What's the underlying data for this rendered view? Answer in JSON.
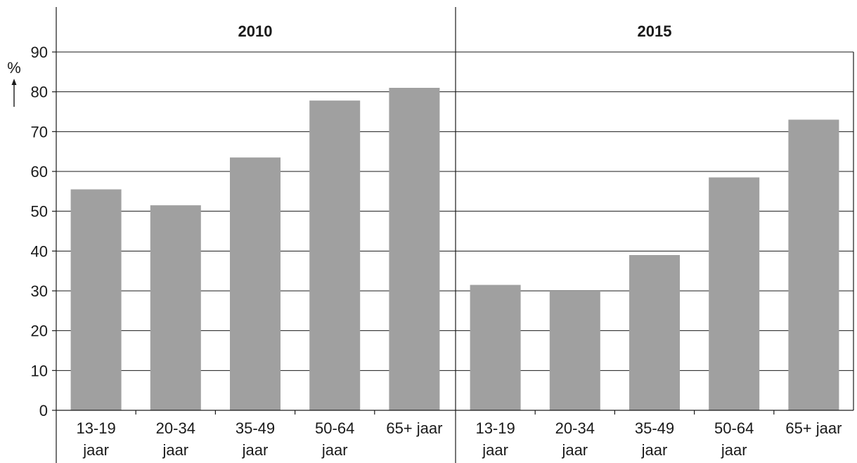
{
  "chart_data": {
    "type": "bar",
    "ylabel": "%",
    "ylim": [
      0,
      90
    ],
    "yticks": [
      0,
      10,
      20,
      30,
      40,
      50,
      60,
      70,
      80,
      90
    ],
    "grid": true,
    "colors": {
      "bar": "#a0a0a0",
      "axis": "#1a1a1a"
    },
    "categories": [
      {
        "line1": "13-19",
        "line2": "jaar"
      },
      {
        "line1": "20-34",
        "line2": "jaar"
      },
      {
        "line1": "35-49",
        "line2": "jaar"
      },
      {
        "line1": "50-64",
        "line2": "jaar"
      },
      {
        "line1": "65+ jaar",
        "line2": ""
      }
    ],
    "panels": [
      {
        "title": "2010",
        "values": [
          55.5,
          51.5,
          63.5,
          77.8,
          81
        ]
      },
      {
        "title": "2015",
        "values": [
          31.5,
          30,
          39,
          58.5,
          73
        ]
      }
    ]
  }
}
